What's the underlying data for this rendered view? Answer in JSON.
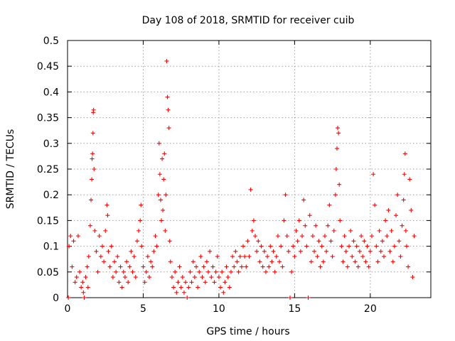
{
  "chart_data": {
    "type": "scatter",
    "title": "Day 108 of 2018, SRMTID for receiver cuib",
    "xlabel": "GPS time / hours",
    "ylabel": "SRMTID / TECUs",
    "xlim": [
      0,
      24
    ],
    "ylim": [
      0,
      0.5
    ],
    "xticks": [
      "0",
      "5",
      "10",
      "15",
      "20"
    ],
    "yticks": [
      "0",
      "0.05",
      "0.1",
      "0.15",
      "0.2",
      "0.25",
      "0.3",
      "0.35",
      "0.4",
      "0.45",
      "0.5"
    ],
    "grid": true,
    "marker": "plus",
    "color": "#ff0000",
    "series": [
      {
        "name": "SRMTID",
        "points": [
          [
            0.05,
            0.0
          ],
          [
            0.1,
            0.1
          ],
          [
            0.2,
            0.12
          ],
          [
            0.3,
            0.06
          ],
          [
            0.4,
            0.11
          ],
          [
            0.5,
            0.03
          ],
          [
            0.6,
            0.04
          ],
          [
            0.7,
            0.12
          ],
          [
            0.8,
            0.05
          ],
          [
            0.9,
            0.02
          ],
          [
            1.0,
            0.03
          ],
          [
            1.05,
            0.01
          ],
          [
            1.1,
            0.0
          ],
          [
            1.2,
            0.04
          ],
          [
            1.3,
            0.06
          ],
          [
            1.35,
            0.02
          ],
          [
            1.4,
            0.08
          ],
          [
            1.5,
            0.14
          ],
          [
            1.55,
            0.19
          ],
          [
            1.6,
            0.23
          ],
          [
            1.62,
            0.27
          ],
          [
            1.65,
            0.28
          ],
          [
            1.68,
            0.32
          ],
          [
            1.7,
            0.36
          ],
          [
            1.72,
            0.365
          ],
          [
            1.75,
            0.25
          ],
          [
            1.8,
            0.13
          ],
          [
            1.9,
            0.09
          ],
          [
            2.0,
            0.05
          ],
          [
            2.1,
            0.12
          ],
          [
            2.2,
            0.08
          ],
          [
            2.3,
            0.1
          ],
          [
            2.4,
            0.07
          ],
          [
            2.5,
            0.13
          ],
          [
            2.6,
            0.18
          ],
          [
            2.65,
            0.16
          ],
          [
            2.7,
            0.09
          ],
          [
            2.8,
            0.06
          ],
          [
            2.9,
            0.1
          ],
          [
            3.0,
            0.04
          ],
          [
            3.1,
            0.07
          ],
          [
            3.2,
            0.05
          ],
          [
            3.3,
            0.08
          ],
          [
            3.4,
            0.03
          ],
          [
            3.5,
            0.06
          ],
          [
            3.6,
            0.02
          ],
          [
            3.7,
            0.05
          ],
          [
            3.8,
            0.04
          ],
          [
            3.9,
            0.07
          ],
          [
            4.0,
            0.03
          ],
          [
            4.1,
            0.06
          ],
          [
            4.2,
            0.09
          ],
          [
            4.3,
            0.05
          ],
          [
            4.4,
            0.08
          ],
          [
            4.5,
            0.04
          ],
          [
            4.6,
            0.11
          ],
          [
            4.7,
            0.13
          ],
          [
            4.8,
            0.15
          ],
          [
            4.85,
            0.18
          ],
          [
            4.9,
            0.1
          ],
          [
            5.0,
            0.06
          ],
          [
            5.1,
            0.03
          ],
          [
            5.2,
            0.05
          ],
          [
            5.3,
            0.08
          ],
          [
            5.4,
            0.04
          ],
          [
            5.5,
            0.07
          ],
          [
            5.6,
            0.06
          ],
          [
            5.7,
            0.09
          ],
          [
            5.8,
            0.12
          ],
          [
            5.9,
            0.1
          ],
          [
            6.0,
            0.2
          ],
          [
            6.05,
            0.3
          ],
          [
            6.1,
            0.24
          ],
          [
            6.15,
            0.19
          ],
          [
            6.2,
            0.15
          ],
          [
            6.25,
            0.27
          ],
          [
            6.3,
            0.17
          ],
          [
            6.35,
            0.23
          ],
          [
            6.4,
            0.28
          ],
          [
            6.45,
            0.13
          ],
          [
            6.5,
            0.2
          ],
          [
            6.55,
            0.46
          ],
          [
            6.6,
            0.39
          ],
          [
            6.65,
            0.365
          ],
          [
            6.7,
            0.33
          ],
          [
            6.75,
            0.11
          ],
          [
            6.8,
            0.07
          ],
          [
            6.9,
            0.04
          ],
          [
            7.0,
            0.02
          ],
          [
            7.1,
            0.05
          ],
          [
            7.2,
            0.01
          ],
          [
            7.3,
            0.03
          ],
          [
            7.4,
            0.06
          ],
          [
            7.5,
            0.02
          ],
          [
            7.6,
            0.04
          ],
          [
            7.7,
            0.01
          ],
          [
            7.8,
            0.03
          ],
          [
            7.9,
            0.0
          ],
          [
            8.0,
            0.02
          ],
          [
            8.1,
            0.05
          ],
          [
            8.2,
            0.03
          ],
          [
            8.3,
            0.07
          ],
          [
            8.4,
            0.04
          ],
          [
            8.5,
            0.06
          ],
          [
            8.6,
            0.02
          ],
          [
            8.7,
            0.05
          ],
          [
            8.8,
            0.08
          ],
          [
            8.9,
            0.04
          ],
          [
            9.0,
            0.06
          ],
          [
            9.1,
            0.03
          ],
          [
            9.2,
            0.07
          ],
          [
            9.3,
            0.05
          ],
          [
            9.4,
            0.09
          ],
          [
            9.5,
            0.04
          ],
          [
            9.6,
            0.06
          ],
          [
            9.7,
            0.03
          ],
          [
            9.8,
            0.05
          ],
          [
            9.9,
            0.08
          ],
          [
            10.0,
            0.04
          ],
          [
            10.1,
            0.02
          ],
          [
            10.2,
            0.05
          ],
          [
            10.3,
            0.01
          ],
          [
            10.4,
            0.03
          ],
          [
            10.5,
            0.06
          ],
          [
            10.6,
            0.04
          ],
          [
            10.7,
            0.02
          ],
          [
            10.8,
            0.05
          ],
          [
            10.9,
            0.08
          ],
          [
            11.0,
            0.06
          ],
          [
            11.1,
            0.09
          ],
          [
            11.2,
            0.07
          ],
          [
            11.3,
            0.05
          ],
          [
            11.4,
            0.08
          ],
          [
            11.5,
            0.06
          ],
          [
            11.6,
            0.1
          ],
          [
            11.7,
            0.08
          ],
          [
            11.8,
            0.06
          ],
          [
            11.9,
            0.11
          ],
          [
            12.0,
            0.08
          ],
          [
            12.1,
            0.21
          ],
          [
            12.2,
            0.13
          ],
          [
            12.3,
            0.15
          ],
          [
            12.4,
            0.12
          ],
          [
            12.5,
            0.09
          ],
          [
            12.6,
            0.11
          ],
          [
            12.7,
            0.07
          ],
          [
            12.8,
            0.1
          ],
          [
            12.9,
            0.06
          ],
          [
            13.0,
            0.09
          ],
          [
            13.1,
            0.05
          ],
          [
            13.2,
            0.08
          ],
          [
            13.3,
            0.06
          ],
          [
            13.4,
            0.1
          ],
          [
            13.5,
            0.07
          ],
          [
            13.6,
            0.09
          ],
          [
            13.7,
            0.05
          ],
          [
            13.8,
            0.08
          ],
          [
            13.9,
            0.12
          ],
          [
            14.0,
            0.07
          ],
          [
            14.1,
            0.1
          ],
          [
            14.2,
            0.06
          ],
          [
            14.3,
            0.15
          ],
          [
            14.4,
            0.2
          ],
          [
            14.5,
            0.12
          ],
          [
            14.6,
            0.09
          ],
          [
            14.7,
            0.0
          ],
          [
            14.8,
            0.05
          ],
          [
            14.9,
            0.1
          ],
          [
            15.0,
            0.08
          ],
          [
            15.1,
            0.13
          ],
          [
            15.2,
            0.11
          ],
          [
            15.3,
            0.15
          ],
          [
            15.4,
            0.09
          ],
          [
            15.5,
            0.12
          ],
          [
            15.6,
            0.19
          ],
          [
            15.7,
            0.14
          ],
          [
            15.8,
            0.1
          ],
          [
            15.9,
            0.0
          ],
          [
            16.0,
            0.16
          ],
          [
            16.1,
            0.07
          ],
          [
            16.2,
            0.12
          ],
          [
            16.3,
            0.09
          ],
          [
            16.4,
            0.14
          ],
          [
            16.5,
            0.08
          ],
          [
            16.6,
            0.11
          ],
          [
            16.7,
            0.06
          ],
          [
            16.8,
            0.1
          ],
          [
            16.9,
            0.07
          ],
          [
            17.0,
            0.12
          ],
          [
            17.1,
            0.09
          ],
          [
            17.2,
            0.14
          ],
          [
            17.3,
            0.18
          ],
          [
            17.4,
            0.11
          ],
          [
            17.5,
            0.08
          ],
          [
            17.6,
            0.13
          ],
          [
            17.7,
            0.2
          ],
          [
            17.75,
            0.25
          ],
          [
            17.8,
            0.29
          ],
          [
            17.85,
            0.33
          ],
          [
            17.9,
            0.32
          ],
          [
            17.95,
            0.22
          ],
          [
            18.0,
            0.15
          ],
          [
            18.1,
            0.1
          ],
          [
            18.2,
            0.07
          ],
          [
            18.3,
            0.12
          ],
          [
            18.4,
            0.09
          ],
          [
            18.5,
            0.06
          ],
          [
            18.6,
            0.1
          ],
          [
            18.7,
            0.13
          ],
          [
            18.8,
            0.08
          ],
          [
            18.9,
            0.11
          ],
          [
            19.0,
            0.07
          ],
          [
            19.1,
            0.1
          ],
          [
            19.2,
            0.06
          ],
          [
            19.3,
            0.09
          ],
          [
            19.4,
            0.12
          ],
          [
            19.5,
            0.08
          ],
          [
            19.6,
            0.11
          ],
          [
            19.7,
            0.07
          ],
          [
            19.8,
            0.1
          ],
          [
            19.9,
            0.06
          ],
          [
            20.0,
            0.09
          ],
          [
            20.1,
            0.12
          ],
          [
            20.2,
            0.24
          ],
          [
            20.3,
            0.18
          ],
          [
            20.4,
            0.1
          ],
          [
            20.5,
            0.07
          ],
          [
            20.6,
            0.13
          ],
          [
            20.7,
            0.09
          ],
          [
            20.8,
            0.11
          ],
          [
            20.9,
            0.08
          ],
          [
            21.0,
            0.15
          ],
          [
            21.1,
            0.12
          ],
          [
            21.2,
            0.17
          ],
          [
            21.3,
            0.09
          ],
          [
            21.4,
            0.13
          ],
          [
            21.5,
            0.07
          ],
          [
            21.6,
            0.1
          ],
          [
            21.7,
            0.16
          ],
          [
            21.8,
            0.2
          ],
          [
            21.9,
            0.11
          ],
          [
            22.0,
            0.08
          ],
          [
            22.1,
            0.14
          ],
          [
            22.2,
            0.19
          ],
          [
            22.25,
            0.24
          ],
          [
            22.3,
            0.28
          ],
          [
            22.35,
            0.13
          ],
          [
            22.4,
            0.1
          ],
          [
            22.5,
            0.06
          ],
          [
            22.6,
            0.23
          ],
          [
            22.7,
            0.17
          ],
          [
            22.8,
            0.04
          ],
          [
            22.9,
            0.12
          ]
        ]
      }
    ]
  }
}
